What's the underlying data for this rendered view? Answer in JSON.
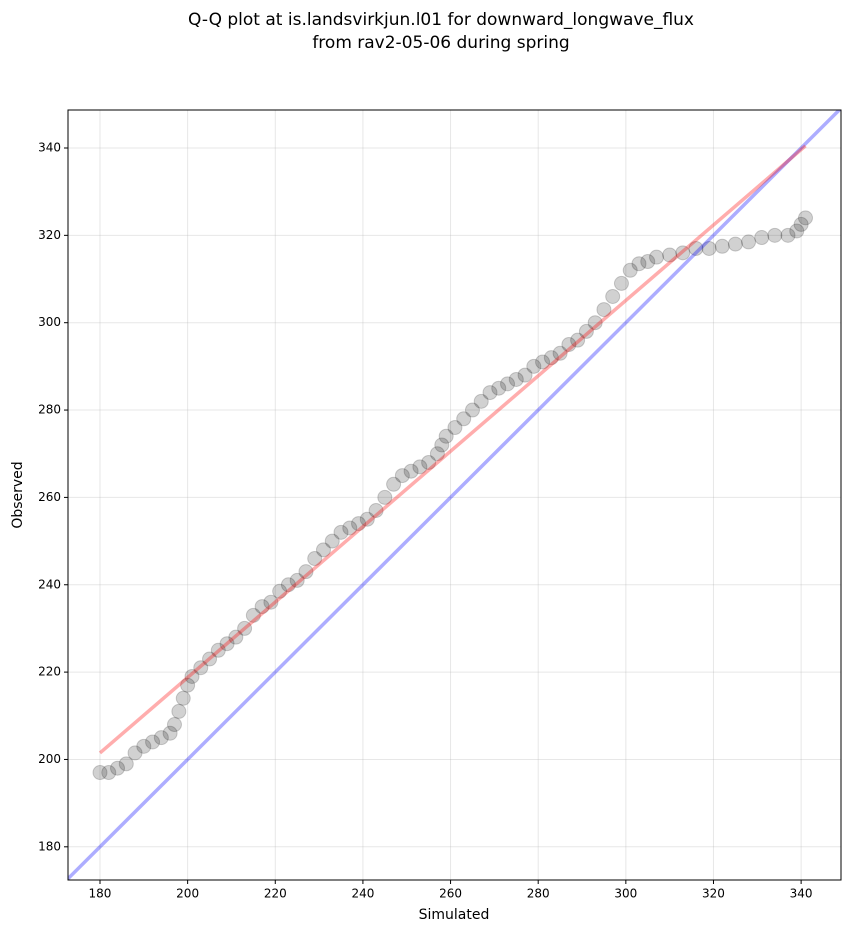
{
  "chart_data": {
    "type": "scatter",
    "title": [
      "Q-Q plot at is.landsvirkjun.l01 for downward_longwave_flux",
      "from rav2-05-06 during spring"
    ],
    "x_label": "Simulated",
    "y_label": "Observed",
    "xlim": [
      172.7,
      349.1
    ],
    "ylim": [
      172.4,
      348.7
    ],
    "xticks": [
      180,
      200,
      220,
      240,
      260,
      280,
      300,
      320,
      340
    ],
    "yticks": [
      180,
      200,
      220,
      240,
      260,
      280,
      300,
      320,
      340
    ],
    "grid": true,
    "color": "#000000",
    "opacity": 0.18,
    "x": [
      180,
      182,
      184,
      186,
      188,
      190,
      192,
      194,
      196,
      197,
      198,
      199,
      200,
      201,
      203,
      205,
      207,
      209,
      211,
      213,
      215,
      217,
      219,
      221,
      223,
      225,
      227,
      229,
      231,
      233,
      235,
      237,
      239,
      241,
      243,
      245,
      247,
      249,
      251,
      253,
      255,
      257,
      258,
      259,
      261,
      263,
      265,
      267,
      269,
      271,
      273,
      275,
      277,
      279,
      281,
      283,
      285,
      287,
      289,
      291,
      293,
      295,
      297,
      299,
      301,
      303,
      305,
      307,
      310,
      313,
      316,
      319,
      322,
      325,
      328,
      331,
      334,
      337,
      339,
      340,
      341
    ],
    "y": [
      197,
      197,
      198,
      199,
      201.5,
      203,
      204,
      205,
      206,
      208,
      211,
      214,
      217,
      219,
      221,
      223,
      225,
      226.5,
      228,
      230,
      233,
      235,
      236,
      238.5,
      240,
      241,
      243,
      246,
      248,
      250,
      252,
      253,
      254,
      255,
      257,
      260,
      263,
      265,
      266,
      267,
      268,
      270,
      272,
      274,
      276,
      278,
      280,
      282,
      284,
      285,
      286,
      287,
      288,
      290,
      291,
      292,
      293,
      295,
      296,
      298,
      300,
      303,
      306,
      309,
      312,
      313.5,
      314,
      315,
      315.5,
      316,
      317,
      317,
      317.5,
      318,
      318.5,
      319.5,
      320,
      320,
      321,
      322.5,
      324
    ],
    "reference_lines": [
      {
        "color": "#0000ff",
        "opacity": 0.32,
        "x": [
          172.7,
          349.1
        ],
        "y": [
          172.7,
          349.1
        ]
      },
      {
        "color": "#ff0000",
        "opacity": 0.32,
        "x": [
          180,
          341
        ],
        "y": [
          201.5,
          340.5
        ]
      }
    ]
  }
}
